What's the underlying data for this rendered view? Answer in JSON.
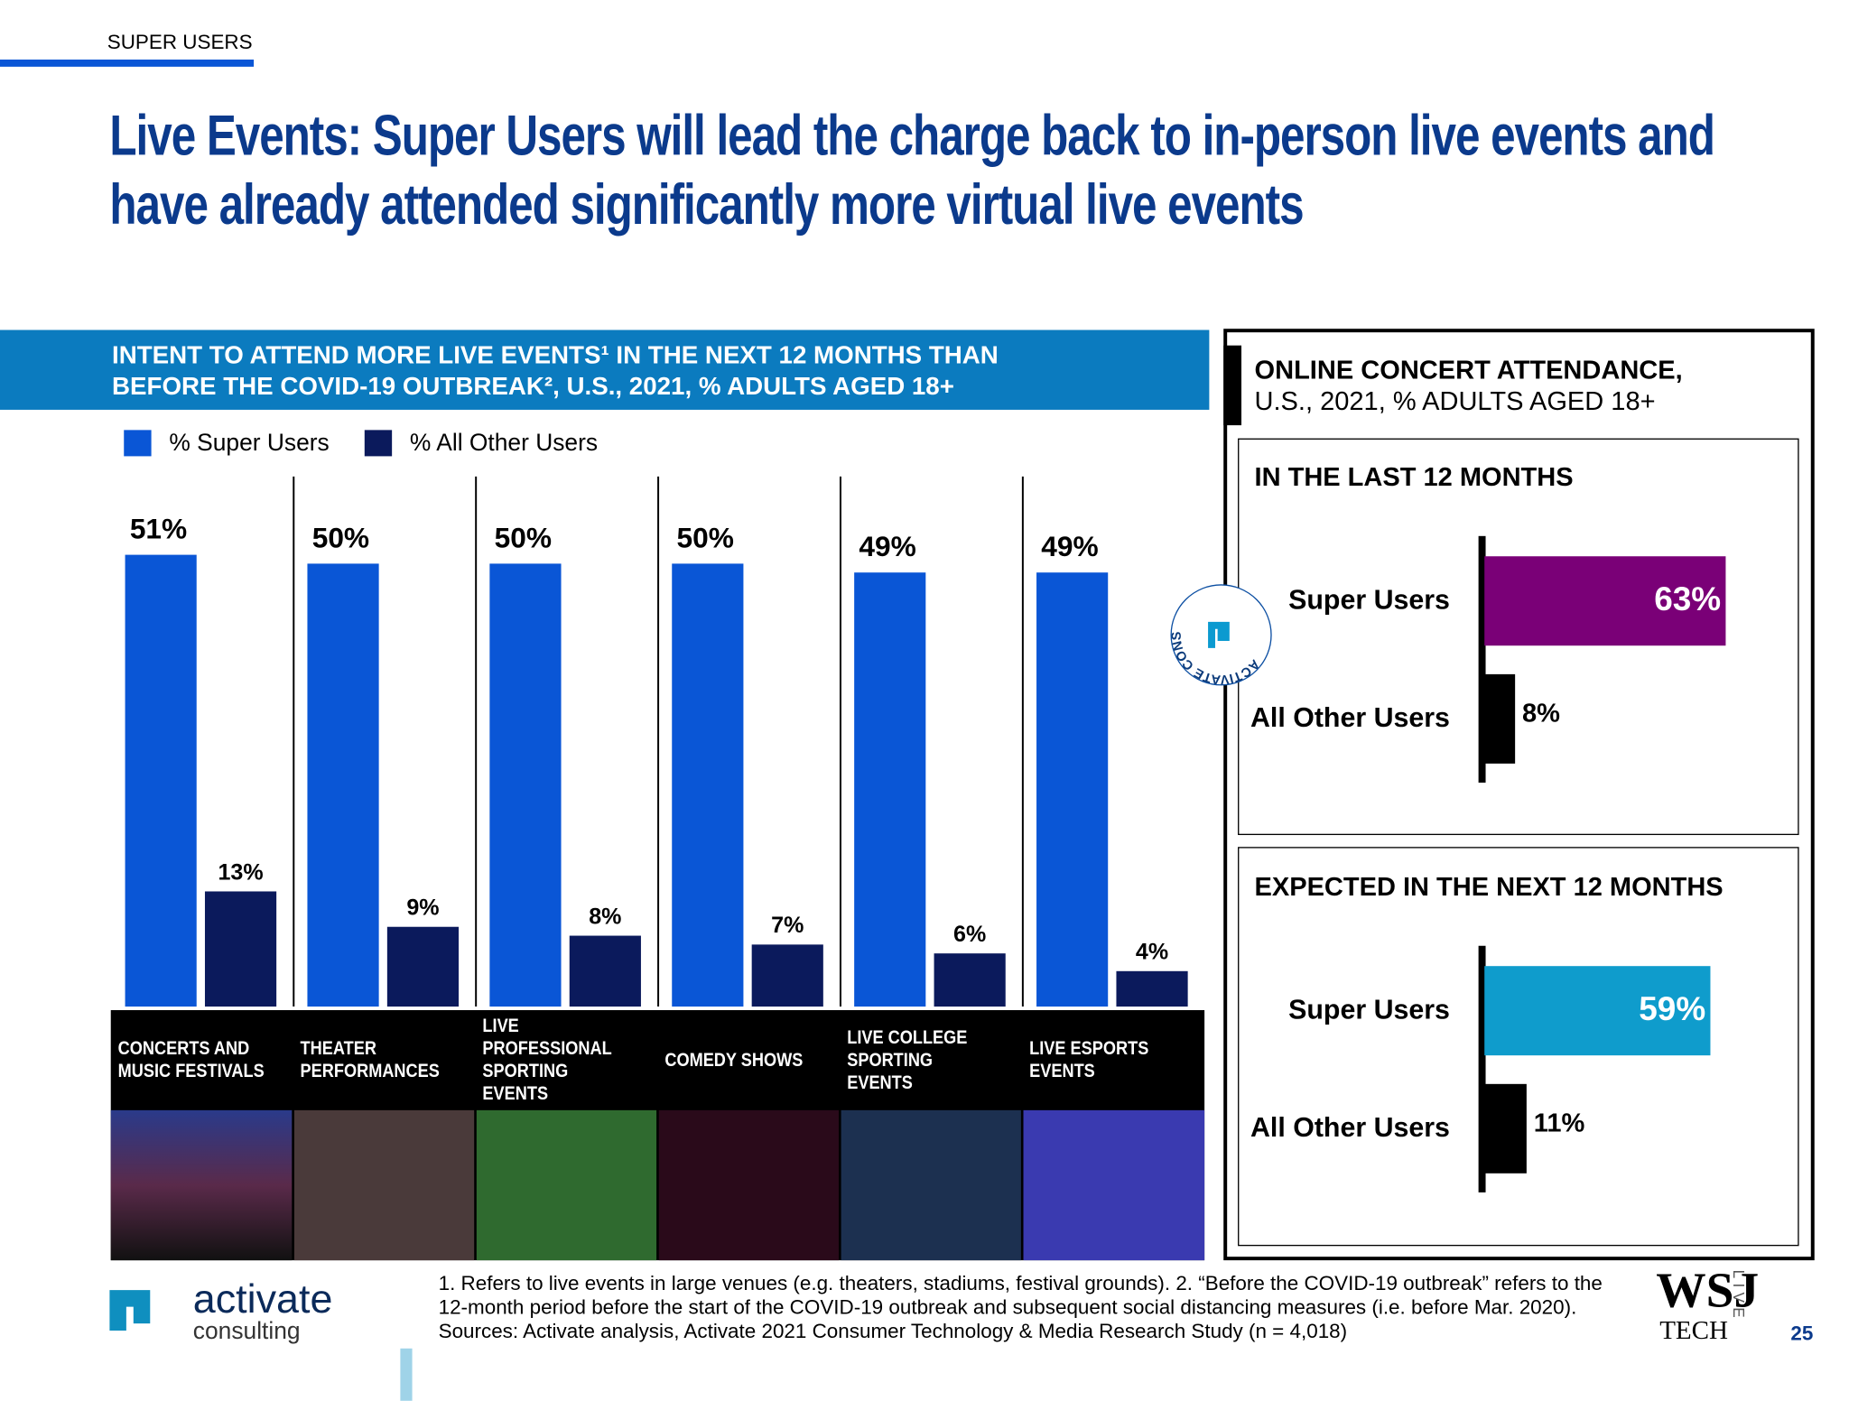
{
  "header": {
    "section": "SUPER USERS",
    "title": "Live Events: Super Users will lead the charge back to in-person live events and have already attended significantly more virtual live events"
  },
  "right_panel": {
    "title_lines": [
      "ONLINE CONCERT ATTENDANCE,",
      "U.S., 2021, % ADULTS AGED 18+"
    ]
  },
  "badge": "ACTIVATE CONSUMER INSIGHT",
  "chart_data": [
    {
      "type": "bar",
      "title": "INTENT TO ATTEND MORE LIVE EVENTS¹ IN THE NEXT 12 MONTHS THAN BEFORE THE COVID-19 OUTBREAK², U.S., 2021, % ADULTS AGED 18+",
      "categories": [
        "CONCERTS AND MUSIC FESTIVALS",
        "THEATER PERFORMANCES",
        "LIVE PROFESSIONAL SPORTING EVENTS",
        "COMEDY SHOWS",
        "LIVE COLLEGE SPORTING EVENTS",
        "LIVE ESPORTS EVENTS"
      ],
      "series": [
        {
          "name": "% Super Users",
          "color": "#0a56d6",
          "values": [
            51,
            50,
            50,
            50,
            49,
            49
          ],
          "value_labels": [
            "51%",
            "50%",
            "50%",
            "50%",
            "49%",
            "49%"
          ]
        },
        {
          "name": "% All Other Users",
          "color": "#0b1a5c",
          "values": [
            13,
            9,
            8,
            7,
            6,
            4
          ],
          "value_labels": [
            "13%",
            "9%",
            "8%",
            "7%",
            "6%",
            "4%"
          ]
        }
      ],
      "ylim": [
        0,
        55
      ]
    },
    {
      "type": "barh",
      "title": "IN THE LAST 12 MONTHS",
      "categories": [
        "Super Users",
        "All Other Users"
      ],
      "values": [
        63,
        8
      ],
      "value_labels": [
        "63%",
        "8%"
      ],
      "colors": [
        "#7a0077",
        "#000000"
      ],
      "xlim": [
        0,
        70
      ]
    },
    {
      "type": "barh",
      "title": "EXPECTED IN THE NEXT 12 MONTHS",
      "categories": [
        "Super Users",
        "All Other Users"
      ],
      "values": [
        59,
        11
      ],
      "value_labels": [
        "59%",
        "11%"
      ],
      "colors": [
        "#0f9ccc",
        "#000000"
      ],
      "xlim": [
        0,
        70
      ]
    }
  ],
  "footer": {
    "logo": "activate",
    "logo_sub": "consulting",
    "footnotes": [
      "1. Refers to live events in large venues (e.g. theaters, stadiums, festival grounds).  2. “Before the COVID-19 outbreak” refers to the",
      "12-month period before the start of the COVID-19 outbreak and subsequent social distancing measures (i.e. before Mar. 2020).",
      "Sources: Activate analysis, Activate 2021 Consumer Technology & Media Research Study (n = 4,018)"
    ],
    "wsj": "WSJ",
    "tech": "TECH",
    "live": "LIVE",
    "page": "25"
  }
}
